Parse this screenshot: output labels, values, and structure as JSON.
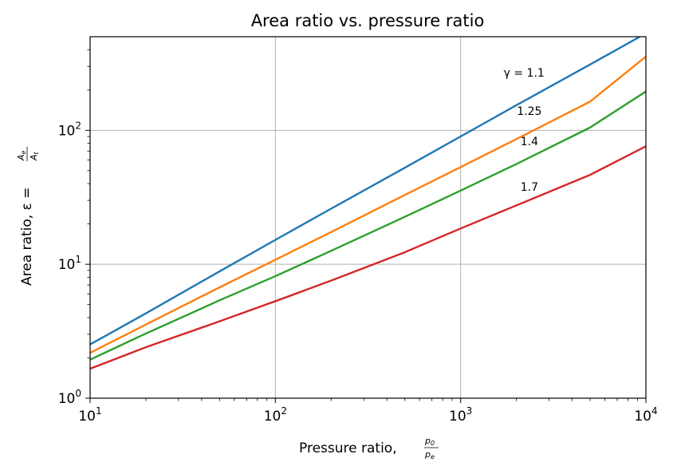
{
  "chart_data": {
    "type": "line",
    "title": "Area ratio vs. pressure ratio",
    "xlabel": "Pressure ratio, ",
    "xlabel_math": {
      "num": "p",
      "num_sub": "0",
      "den": "p",
      "den_sub": "e"
    },
    "ylabel": "Area ratio, ε = ",
    "ylabel_math": {
      "num": "A",
      "num_sub": "e",
      "den": "A",
      "den_sub": "t"
    },
    "xscale": "log",
    "yscale": "log",
    "xlim": [
      10,
      10000
    ],
    "ylim": [
      1,
      500
    ],
    "grid": true,
    "x_ticks": [
      {
        "value": 10,
        "base": "10",
        "exp": "1"
      },
      {
        "value": 100,
        "base": "10",
        "exp": "2"
      },
      {
        "value": 1000,
        "base": "10",
        "exp": "3"
      },
      {
        "value": 10000,
        "base": "10",
        "exp": "4"
      }
    ],
    "y_ticks": [
      {
        "value": 1,
        "base": "10",
        "exp": "0"
      },
      {
        "value": 10,
        "base": "10",
        "exp": "1"
      },
      {
        "value": 100,
        "base": "10",
        "exp": "2"
      }
    ],
    "x": [
      10,
      20,
      50,
      100,
      200,
      500,
      1000,
      2000,
      5000,
      10000
    ],
    "series": [
      {
        "color": "#1f77b4",
        "values": [
          2.52,
          4.3,
          8.85,
          15.2,
          26.0,
          52.6,
          90.0,
          154,
          310,
          530
        ]
      },
      {
        "color": "#ff7f0e",
        "values": [
          2.18,
          3.55,
          6.72,
          10.8,
          17.4,
          32.9,
          53.1,
          86.0,
          164,
          355
        ]
      },
      {
        "color": "#2ca02c",
        "values": [
          1.94,
          3.04,
          5.38,
          8.15,
          12.6,
          22.6,
          35.5,
          56.0,
          105,
          195
        ]
      },
      {
        "color": "#d62728",
        "values": [
          1.66,
          2.4,
          3.75,
          5.3,
          7.55,
          12.3,
          18.5,
          27.5,
          46.5,
          76.0
        ]
      }
    ],
    "series_labels": [
      {
        "text": "γ = 1.1",
        "x": 2200,
        "y": 270
      },
      {
        "text": "1.25",
        "x": 2350,
        "y": 140
      },
      {
        "text": "1.4",
        "x": 2350,
        "y": 83
      },
      {
        "text": "1.7",
        "x": 2350,
        "y": 38
      }
    ]
  }
}
